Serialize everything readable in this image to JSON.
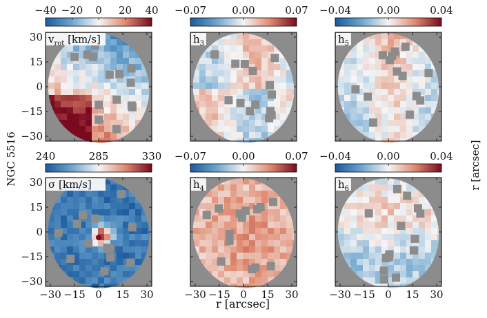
{
  "figure": {
    "galaxy_label": "NGC 5516",
    "x_axis_label": "r [arcsec]",
    "y_axis_label": "r [arcsec]",
    "x_ticks": [
      "−30",
      "−15",
      "0",
      "15",
      "30"
    ],
    "y_ticks": [
      "30",
      "15",
      "0",
      "−15",
      "−30"
    ],
    "colors": {
      "background_gray": "#8c8c8c",
      "cmap_low": "#1f5fa8",
      "cmap_mid": "#f7f7f7",
      "cmap_high": "#8b0a1e"
    },
    "panels": [
      {
        "label_main": "v",
        "label_sub": "rot",
        "label_unit": " [km/s]",
        "colorbar_ticks": [
          "−40",
          "−20",
          "0",
          "20",
          "40"
        ],
        "seed": 11
      },
      {
        "label_main": "h",
        "label_sub": "3",
        "label_unit": "",
        "colorbar_ticks": [
          "−0.07",
          "0.00",
          "0.07"
        ],
        "seed": 23
      },
      {
        "label_main": "h",
        "label_sub": "5",
        "label_unit": "",
        "colorbar_ticks": [
          "−0.04",
          "0.00",
          "0.04"
        ],
        "seed": 37
      },
      {
        "label_main": "σ",
        "label_sub": "",
        "label_unit": " [km/s]",
        "colorbar_ticks": [
          "240",
          "285",
          "330"
        ],
        "seed": 41
      },
      {
        "label_main": "h",
        "label_sub": "4",
        "label_unit": "",
        "colorbar_ticks": [
          "−0.07",
          "0.00",
          "0.07"
        ],
        "seed": 53
      },
      {
        "label_main": "h",
        "label_sub": "6",
        "label_unit": "",
        "colorbar_ticks": [
          "−0.04",
          "0.00",
          "0.04"
        ],
        "seed": 67
      }
    ]
  }
}
